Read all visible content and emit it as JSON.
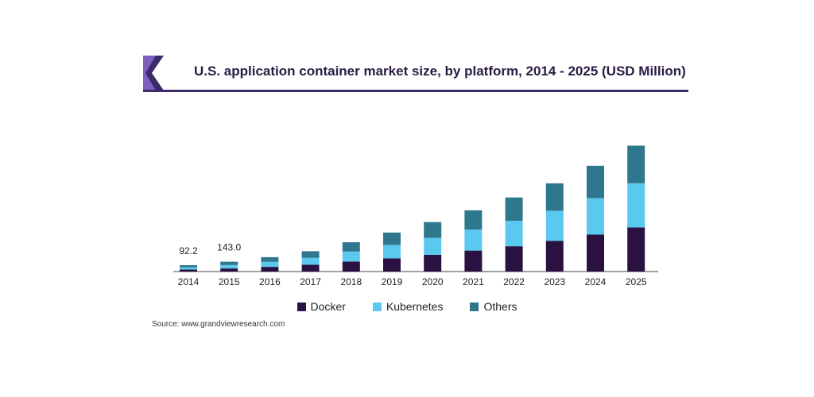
{
  "header": {
    "title": "U.S. application container market size, by platform, 2014 - 2025 (USD Million)"
  },
  "source": "Source: www.grandviewresearch.com",
  "colors": {
    "Docker": "#2b1141",
    "Kubernetes": "#5bc8ef",
    "Others": "#2e778c",
    "logo_dark": "#3d2a6b",
    "logo_light": "#7f5fc0"
  },
  "chart_data": {
    "type": "bar",
    "stacked": true,
    "title": "U.S. application container market size, by platform, 2014 - 2025 (USD Million)",
    "categories": [
      "2014",
      "2015",
      "2016",
      "2017",
      "2018",
      "2019",
      "2020",
      "2021",
      "2022",
      "2023",
      "2024",
      "2025"
    ],
    "series": [
      {
        "name": "Docker",
        "values": [
          30,
          45,
          68,
          98,
          145,
          190,
          242,
          304,
          367,
          444,
          536,
          640
        ]
      },
      {
        "name": "Kubernetes",
        "values": [
          32,
          50,
          72,
          102,
          145,
          195,
          245,
          304,
          367,
          435,
          528,
          640
        ]
      },
      {
        "name": "Others",
        "values": [
          30,
          48,
          68,
          95,
          135,
          180,
          230,
          280,
          340,
          400,
          470,
          545
        ]
      }
    ],
    "data_labels": [
      {
        "category": "2014",
        "text": "92.2"
      },
      {
        "category": "2015",
        "text": "143.0"
      }
    ],
    "legend_position": "bottom",
    "ylim": [
      0,
      1900
    ],
    "grid": false
  }
}
